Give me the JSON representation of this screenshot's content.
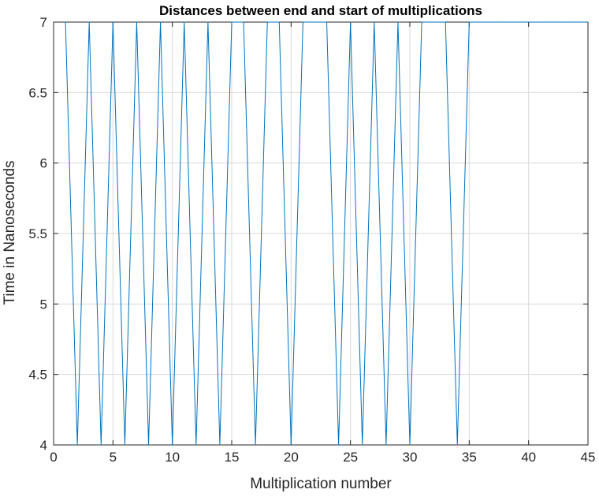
{
  "chart_data": {
    "type": "line",
    "title": "Distances between end and start of multiplications",
    "xlabel": "Multiplication number",
    "ylabel": "Time in Nanoseconds",
    "xlim": [
      0,
      45
    ],
    "ylim": [
      4,
      7
    ],
    "xticks": [
      "0",
      "5",
      "10",
      "15",
      "20",
      "25",
      "30",
      "35",
      "40",
      "45"
    ],
    "yticks": [
      "4",
      "4.5",
      "5",
      "5.5",
      "6",
      "6.5",
      "7"
    ],
    "grid": true,
    "line_color": "#0072BD",
    "series": [
      {
        "x": [
          1,
          2,
          3,
          4,
          5,
          6,
          7,
          8,
          9,
          10,
          11,
          12,
          13,
          14,
          15,
          16,
          17,
          18,
          19,
          20,
          21,
          22,
          23,
          24,
          25,
          26,
          27,
          28,
          29,
          30,
          31,
          32,
          33,
          34,
          35,
          36,
          37,
          38,
          39,
          40,
          41,
          42,
          43,
          44,
          45
        ],
        "values": [
          7,
          4,
          7,
          4,
          7,
          4,
          7,
          4,
          7,
          4,
          7,
          4,
          7,
          4,
          7,
          7,
          4,
          7,
          7,
          4,
          7,
          7,
          7,
          4,
          7,
          4,
          7,
          4,
          7,
          4,
          7,
          7,
          7,
          4,
          7,
          7,
          7,
          7,
          7,
          7,
          7,
          7,
          7,
          7,
          7
        ]
      }
    ]
  }
}
